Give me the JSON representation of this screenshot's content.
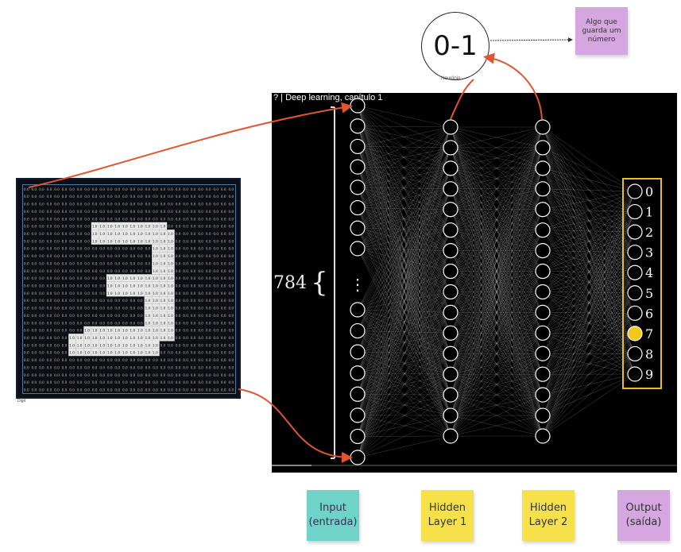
{
  "neuron": {
    "value": "0-1",
    "caption": "Neurônio"
  },
  "note_top": {
    "text": "Algo que guarda um número",
    "color": "#d5a6e0"
  },
  "video": {
    "title": "? | Deep learning, capítulo 1",
    "input_count": "784",
    "ellipsis": "⋮"
  },
  "network": {
    "input_visible": 16,
    "hidden1_count": 16,
    "hidden2_count": 16,
    "output_labels": [
      "0",
      "1",
      "2",
      "3",
      "4",
      "5",
      "6",
      "7",
      "8",
      "9"
    ],
    "active_output": "7",
    "active_color": "#f5c518",
    "output_box_color": "#e8c21a"
  },
  "mnist": {
    "caption": "Digit",
    "value_bright": "1.0",
    "value_dark": "0.0",
    "grid_size": 28
  },
  "arrow_color": "#e2552c",
  "legend": [
    {
      "text": "Input (entrada)",
      "color": "#6fd3c9"
    },
    {
      "text": "Hidden Layer 1",
      "color": "#f7e14a"
    },
    {
      "text": "Hidden Layer 2",
      "color": "#f7e14a"
    },
    {
      "text": "Output (saída)",
      "color": "#d5a6e0"
    }
  ]
}
